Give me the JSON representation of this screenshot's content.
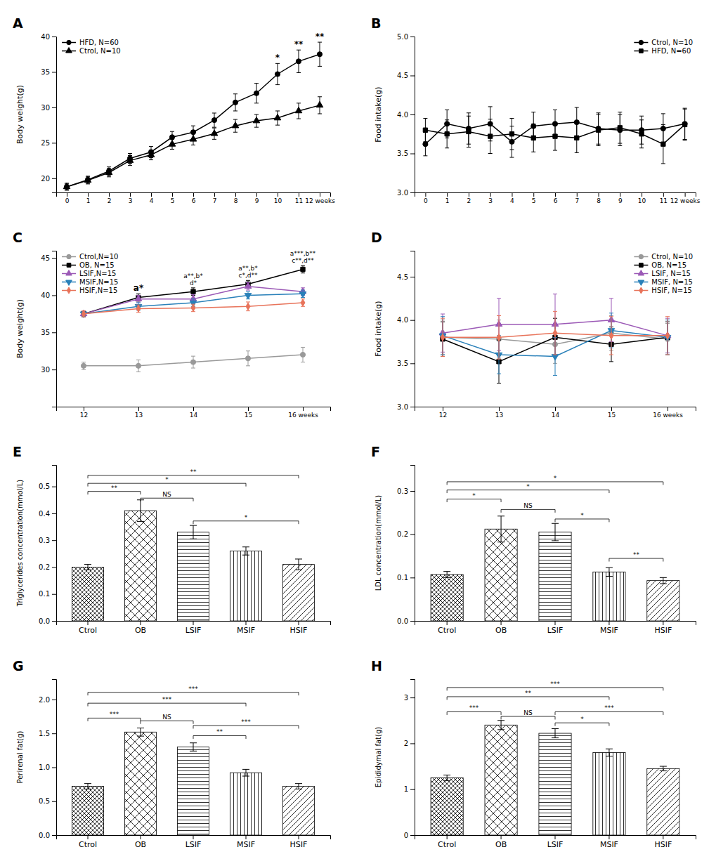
{
  "chart_data": [
    {
      "type": "line",
      "title": "A",
      "x": [
        0,
        1,
        2,
        3,
        4,
        5,
        6,
        7,
        8,
        9,
        10,
        11,
        12
      ],
      "xlim": [
        -0.5,
        12.5
      ],
      "xticks": [
        0,
        1,
        2,
        3,
        4,
        5,
        6,
        7,
        8,
        9,
        10,
        11,
        {
          "value": 12,
          "label": "12 weeks"
        }
      ],
      "ylim": [
        18,
        40
      ],
      "yticks": [
        20,
        25,
        30,
        35,
        40
      ],
      "ylabel": "Body weight(g)",
      "legend": "upper left",
      "grid": false,
      "series": [
        {
          "name": "HFD, N=60",
          "color": "#000000",
          "marker": "circle",
          "values": [
            18.8,
            19.8,
            21.0,
            22.8,
            23.7,
            25.8,
            26.5,
            28.2,
            30.7,
            32.0,
            34.7,
            36.5,
            37.5
          ],
          "errors": [
            0.4,
            0.5,
            0.6,
            0.7,
            0.8,
            0.8,
            0.9,
            1.0,
            1.2,
            1.4,
            1.5,
            1.6,
            1.7
          ]
        },
        {
          "name": "Ctrol, N=10",
          "color": "#000000",
          "marker": "triangle",
          "values": [
            18.8,
            19.7,
            20.8,
            22.5,
            23.3,
            24.8,
            25.5,
            26.3,
            27.4,
            28.1,
            28.5,
            29.5,
            30.3
          ],
          "errors": [
            0.5,
            0.5,
            0.6,
            0.7,
            0.7,
            0.7,
            0.8,
            0.8,
            0.9,
            0.9,
            1.0,
            1.1,
            1.2
          ]
        }
      ],
      "annotations": [
        {
          "x": 10,
          "text": "*"
        },
        {
          "x": 11,
          "text": "**"
        },
        {
          "x": 12,
          "text": "**"
        }
      ]
    },
    {
      "type": "line",
      "title": "B",
      "x": [
        0,
        1,
        2,
        3,
        4,
        5,
        6,
        7,
        8,
        9,
        10,
        11,
        12
      ],
      "xlim": [
        -0.5,
        12.5
      ],
      "xticks": [
        0,
        1,
        2,
        3,
        4,
        5,
        6,
        7,
        8,
        9,
        10,
        11,
        {
          "value": 12,
          "label": "12 weeks"
        }
      ],
      "ylim": [
        3.0,
        5.0
      ],
      "yticks": [
        {
          "value": 3.0,
          "label": "3.0"
        },
        3.5,
        {
          "value": 4.0,
          "label": "4.0"
        },
        4.5,
        {
          "value": 5.0,
          "label": "5.0"
        }
      ],
      "ylabel": "Food intake(g)",
      "legend": "upper right",
      "grid": false,
      "series": [
        {
          "name": "Ctrol, N=10",
          "color": "#000000",
          "marker": "circle",
          "values": [
            3.62,
            3.88,
            3.82,
            3.88,
            3.65,
            3.85,
            3.88,
            3.9,
            3.82,
            3.8,
            3.8,
            3.82,
            3.88
          ],
          "errors": [
            0.15,
            0.18,
            0.2,
            0.22,
            0.2,
            0.18,
            0.18,
            0.19,
            0.2,
            0.2,
            0.18,
            0.19,
            0.2
          ]
        },
        {
          "name": "HFD, N=60",
          "color": "#000000",
          "marker": "square",
          "values": [
            3.8,
            3.75,
            3.78,
            3.72,
            3.75,
            3.7,
            3.72,
            3.7,
            3.8,
            3.83,
            3.75,
            3.62,
            3.87
          ],
          "errors": [
            0.15,
            0.18,
            0.2,
            0.22,
            0.2,
            0.18,
            0.18,
            0.19,
            0.2,
            0.2,
            0.18,
            0.25,
            0.2
          ]
        }
      ]
    },
    {
      "type": "line",
      "title": "C",
      "x": [
        12,
        13,
        14,
        15,
        16
      ],
      "xlim": [
        11.5,
        16.5
      ],
      "xticks": [
        12,
        13,
        14,
        15,
        {
          "value": 16,
          "label": "16 weeks"
        }
      ],
      "ylim": [
        25,
        46
      ],
      "yticks": [
        30,
        35,
        40,
        45
      ],
      "ylabel": "Body weight(g)",
      "legend": "upper left",
      "grid": false,
      "series": [
        {
          "name": "Ctrol,N=10",
          "color": "#999999",
          "marker": "circle",
          "values": [
            30.5,
            30.5,
            31.0,
            31.5,
            32.0
          ],
          "errors": [
            0.5,
            0.8,
            0.8,
            1.0,
            1.0
          ]
        },
        {
          "name": "OB, N=15",
          "color": "#000000",
          "marker": "square",
          "values": [
            37.5,
            39.7,
            40.5,
            41.5,
            43.5
          ],
          "errors": [
            0.4,
            0.5,
            0.5,
            0.5,
            0.5
          ]
        },
        {
          "name": "LSIF,N=15",
          "color": "#9b59b6",
          "marker": "triangle",
          "values": [
            37.5,
            39.5,
            39.5,
            41.2,
            40.5
          ],
          "errors": [
            0.4,
            0.5,
            0.6,
            0.5,
            0.5
          ]
        },
        {
          "name": "MSIF,N=15",
          "color": "#2980b9",
          "marker": "triangle-down",
          "values": [
            37.5,
            38.5,
            39.0,
            40.0,
            40.2
          ],
          "errors": [
            0.4,
            0.5,
            0.5,
            0.5,
            0.5
          ]
        },
        {
          "name": "HSIF,N=15",
          "color": "#e8735a",
          "marker": "diamond",
          "values": [
            37.5,
            38.2,
            38.3,
            38.5,
            39.0
          ],
          "errors": [
            0.4,
            0.5,
            0.5,
            0.6,
            0.5
          ]
        }
      ],
      "annotations": [
        {
          "x": 13,
          "text": "a*"
        },
        {
          "x": 14,
          "text": "a**,b*\nd*"
        },
        {
          "x": 15,
          "text": "a**,b*\nc*,d**"
        },
        {
          "x": 16,
          "text": "a***,b**\nc**,d**"
        }
      ]
    },
    {
      "type": "line",
      "title": "D",
      "x": [
        12,
        13,
        14,
        15,
        16
      ],
      "xlim": [
        11.5,
        16.5
      ],
      "xticks": [
        12,
        13,
        14,
        15,
        {
          "value": 16,
          "label": "16 weeks"
        }
      ],
      "ylim": [
        3.0,
        4.8
      ],
      "yticks": [
        {
          "value": 3.0,
          "label": "3.0"
        },
        3.5,
        {
          "value": 4.0,
          "label": "4.0"
        },
        4.5
      ],
      "ylabel": "Food intake(g)",
      "legend": "upper right",
      "grid": false,
      "series": [
        {
          "name": "Ctrol, N=10",
          "color": "#999999",
          "marker": "circle",
          "values": [
            3.8,
            3.78,
            3.72,
            3.85,
            3.78
          ],
          "errors": [
            0.2,
            0.22,
            0.22,
            0.2,
            0.18
          ]
        },
        {
          "name": "OB, N=15",
          "color": "#000000",
          "marker": "square",
          "values": [
            3.78,
            3.52,
            3.8,
            3.72,
            3.8
          ],
          "errors": [
            0.2,
            0.25,
            0.22,
            0.2,
            0.18
          ]
        },
        {
          "name": "LSIF, N=15",
          "color": "#9b59b6",
          "marker": "triangle",
          "values": [
            3.85,
            3.95,
            3.95,
            4.0,
            3.82
          ],
          "errors": [
            0.22,
            0.3,
            0.35,
            0.25,
            0.2
          ]
        },
        {
          "name": "MSIF, N=15",
          "color": "#2980b9",
          "marker": "triangle-down",
          "values": [
            3.82,
            3.6,
            3.58,
            3.88,
            3.8
          ],
          "errors": [
            0.22,
            0.22,
            0.22,
            0.2,
            0.2
          ]
        },
        {
          "name": "HSIF, N=15",
          "color": "#e8735a",
          "marker": "diamond",
          "values": [
            3.8,
            3.8,
            3.85,
            3.82,
            3.82
          ],
          "errors": [
            0.22,
            0.25,
            0.25,
            0.22,
            0.22
          ]
        }
      ]
    },
    {
      "type": "bar",
      "title": "E",
      "categories": [
        "Ctrol",
        "OB",
        "LSIF",
        "MSIF",
        "HSIF"
      ],
      "values": [
        0.2,
        0.41,
        0.33,
        0.26,
        0.21
      ],
      "errors": [
        0.01,
        0.04,
        0.025,
        0.015,
        0.02
      ],
      "color": "#000000",
      "ylim": [
        0,
        0.58
      ],
      "yticks": [
        {
          "value": 0.0,
          "label": "0.0"
        },
        0.1,
        0.2,
        0.3,
        0.4,
        0.5
      ],
      "ylabel": "Triglycerides concentration(mmol/L)",
      "grid": false,
      "annotations": [
        {
          "from": "Ctrol",
          "to": "OB",
          "y": 0.47,
          "text": "**"
        },
        {
          "from": "Ctrol",
          "to": "HSIF",
          "y": 0.53,
          "text": "**"
        },
        {
          "from": "Ctrol",
          "to": "MSIF",
          "y": 0.5,
          "text": "*"
        },
        {
          "from": "OB",
          "to": "LSIF",
          "y": 0.445,
          "text": "NS"
        },
        {
          "from": "LSIF",
          "to": "HSIF",
          "y": 0.36,
          "text": "*"
        }
      ]
    },
    {
      "type": "bar",
      "title": "F",
      "categories": [
        "Ctrol",
        "OB",
        "LSIF",
        "MSIF",
        "HSIF"
      ],
      "values": [
        0.107,
        0.212,
        0.205,
        0.113,
        0.093
      ],
      "errors": [
        0.007,
        0.03,
        0.02,
        0.01,
        0.007
      ],
      "color": "#000000",
      "ylim": [
        0,
        0.36
      ],
      "yticks": [
        {
          "value": 0.0,
          "label": "0.0"
        },
        0.1,
        0.2,
        0.3
      ],
      "ylabel": "LDL concentration(mmol/L)",
      "grid": false,
      "annotations": [
        {
          "from": "Ctrol",
          "to": "OB",
          "y": 0.274,
          "text": "*"
        },
        {
          "from": "Ctrol",
          "to": "HSIF",
          "y": 0.314,
          "text": "*"
        },
        {
          "from": "Ctrol",
          "to": "MSIF",
          "y": 0.295,
          "text": "*"
        },
        {
          "from": "OB",
          "to": "LSIF",
          "y": 0.25,
          "text": "NS"
        },
        {
          "from": "LSIF",
          "to": "MSIF",
          "y": 0.228,
          "text": "*"
        },
        {
          "from": "MSIF",
          "to": "HSIF",
          "y": 0.137,
          "text": "**"
        }
      ]
    },
    {
      "type": "bar",
      "title": "G",
      "categories": [
        "Ctrol",
        "OB",
        "LSIF",
        "MSIF",
        "HSIF"
      ],
      "values": [
        0.72,
        1.52,
        1.3,
        0.92,
        0.72
      ],
      "errors": [
        0.04,
        0.06,
        0.06,
        0.05,
        0.04
      ],
      "color": "#000000",
      "ylim": [
        0,
        2.3
      ],
      "yticks": [
        {
          "value": 0.0,
          "label": "0.0"
        },
        0.5,
        {
          "value": 1.0,
          "label": "1.0"
        },
        1.5,
        {
          "value": 2.0,
          "label": "2.0"
        }
      ],
      "ylabel": "Perirenal fat(g)",
      "grid": false,
      "annotations": [
        {
          "from": "Ctrol",
          "to": "OB",
          "y": 1.68,
          "text": "***"
        },
        {
          "from": "Ctrol",
          "to": "MSIF",
          "y": 1.9,
          "text": "***"
        },
        {
          "from": "Ctrol",
          "to": "HSIF",
          "y": 2.06,
          "text": "***"
        },
        {
          "from": "OB",
          "to": "LSIF",
          "y": 1.64,
          "text": "NS"
        },
        {
          "from": "LSIF",
          "to": "MSIF",
          "y": 1.42,
          "text": "**"
        },
        {
          "from": "LSIF",
          "to": "HSIF",
          "y": 1.57,
          "text": "***"
        }
      ]
    },
    {
      "type": "bar",
      "title": "H",
      "categories": [
        "Ctrol",
        "OB",
        "LSIF",
        "MSIF",
        "HSIF"
      ],
      "values": [
        1.25,
        2.4,
        2.22,
        1.8,
        1.45
      ],
      "errors": [
        0.06,
        0.1,
        0.1,
        0.08,
        0.05
      ],
      "color": "#000000",
      "ylim": [
        0,
        3.4
      ],
      "yticks": [
        0,
        1,
        2,
        3
      ],
      "ylabel": "Epididymal fat(g)",
      "grid": false,
      "annotations": [
        {
          "from": "Ctrol",
          "to": "OB",
          "y": 2.62,
          "text": "***"
        },
        {
          "from": "Ctrol",
          "to": "MSIF",
          "y": 2.95,
          "text": "**"
        },
        {
          "from": "Ctrol",
          "to": "HSIF",
          "y": 3.15,
          "text": "***"
        },
        {
          "from": "OB",
          "to": "LSIF",
          "y": 2.52,
          "text": "NS"
        },
        {
          "from": "LSIF",
          "to": "MSIF",
          "y": 2.38,
          "text": "*"
        },
        {
          "from": "LSIF",
          "to": "HSIF",
          "y": 2.62,
          "text": "***"
        }
      ]
    }
  ]
}
